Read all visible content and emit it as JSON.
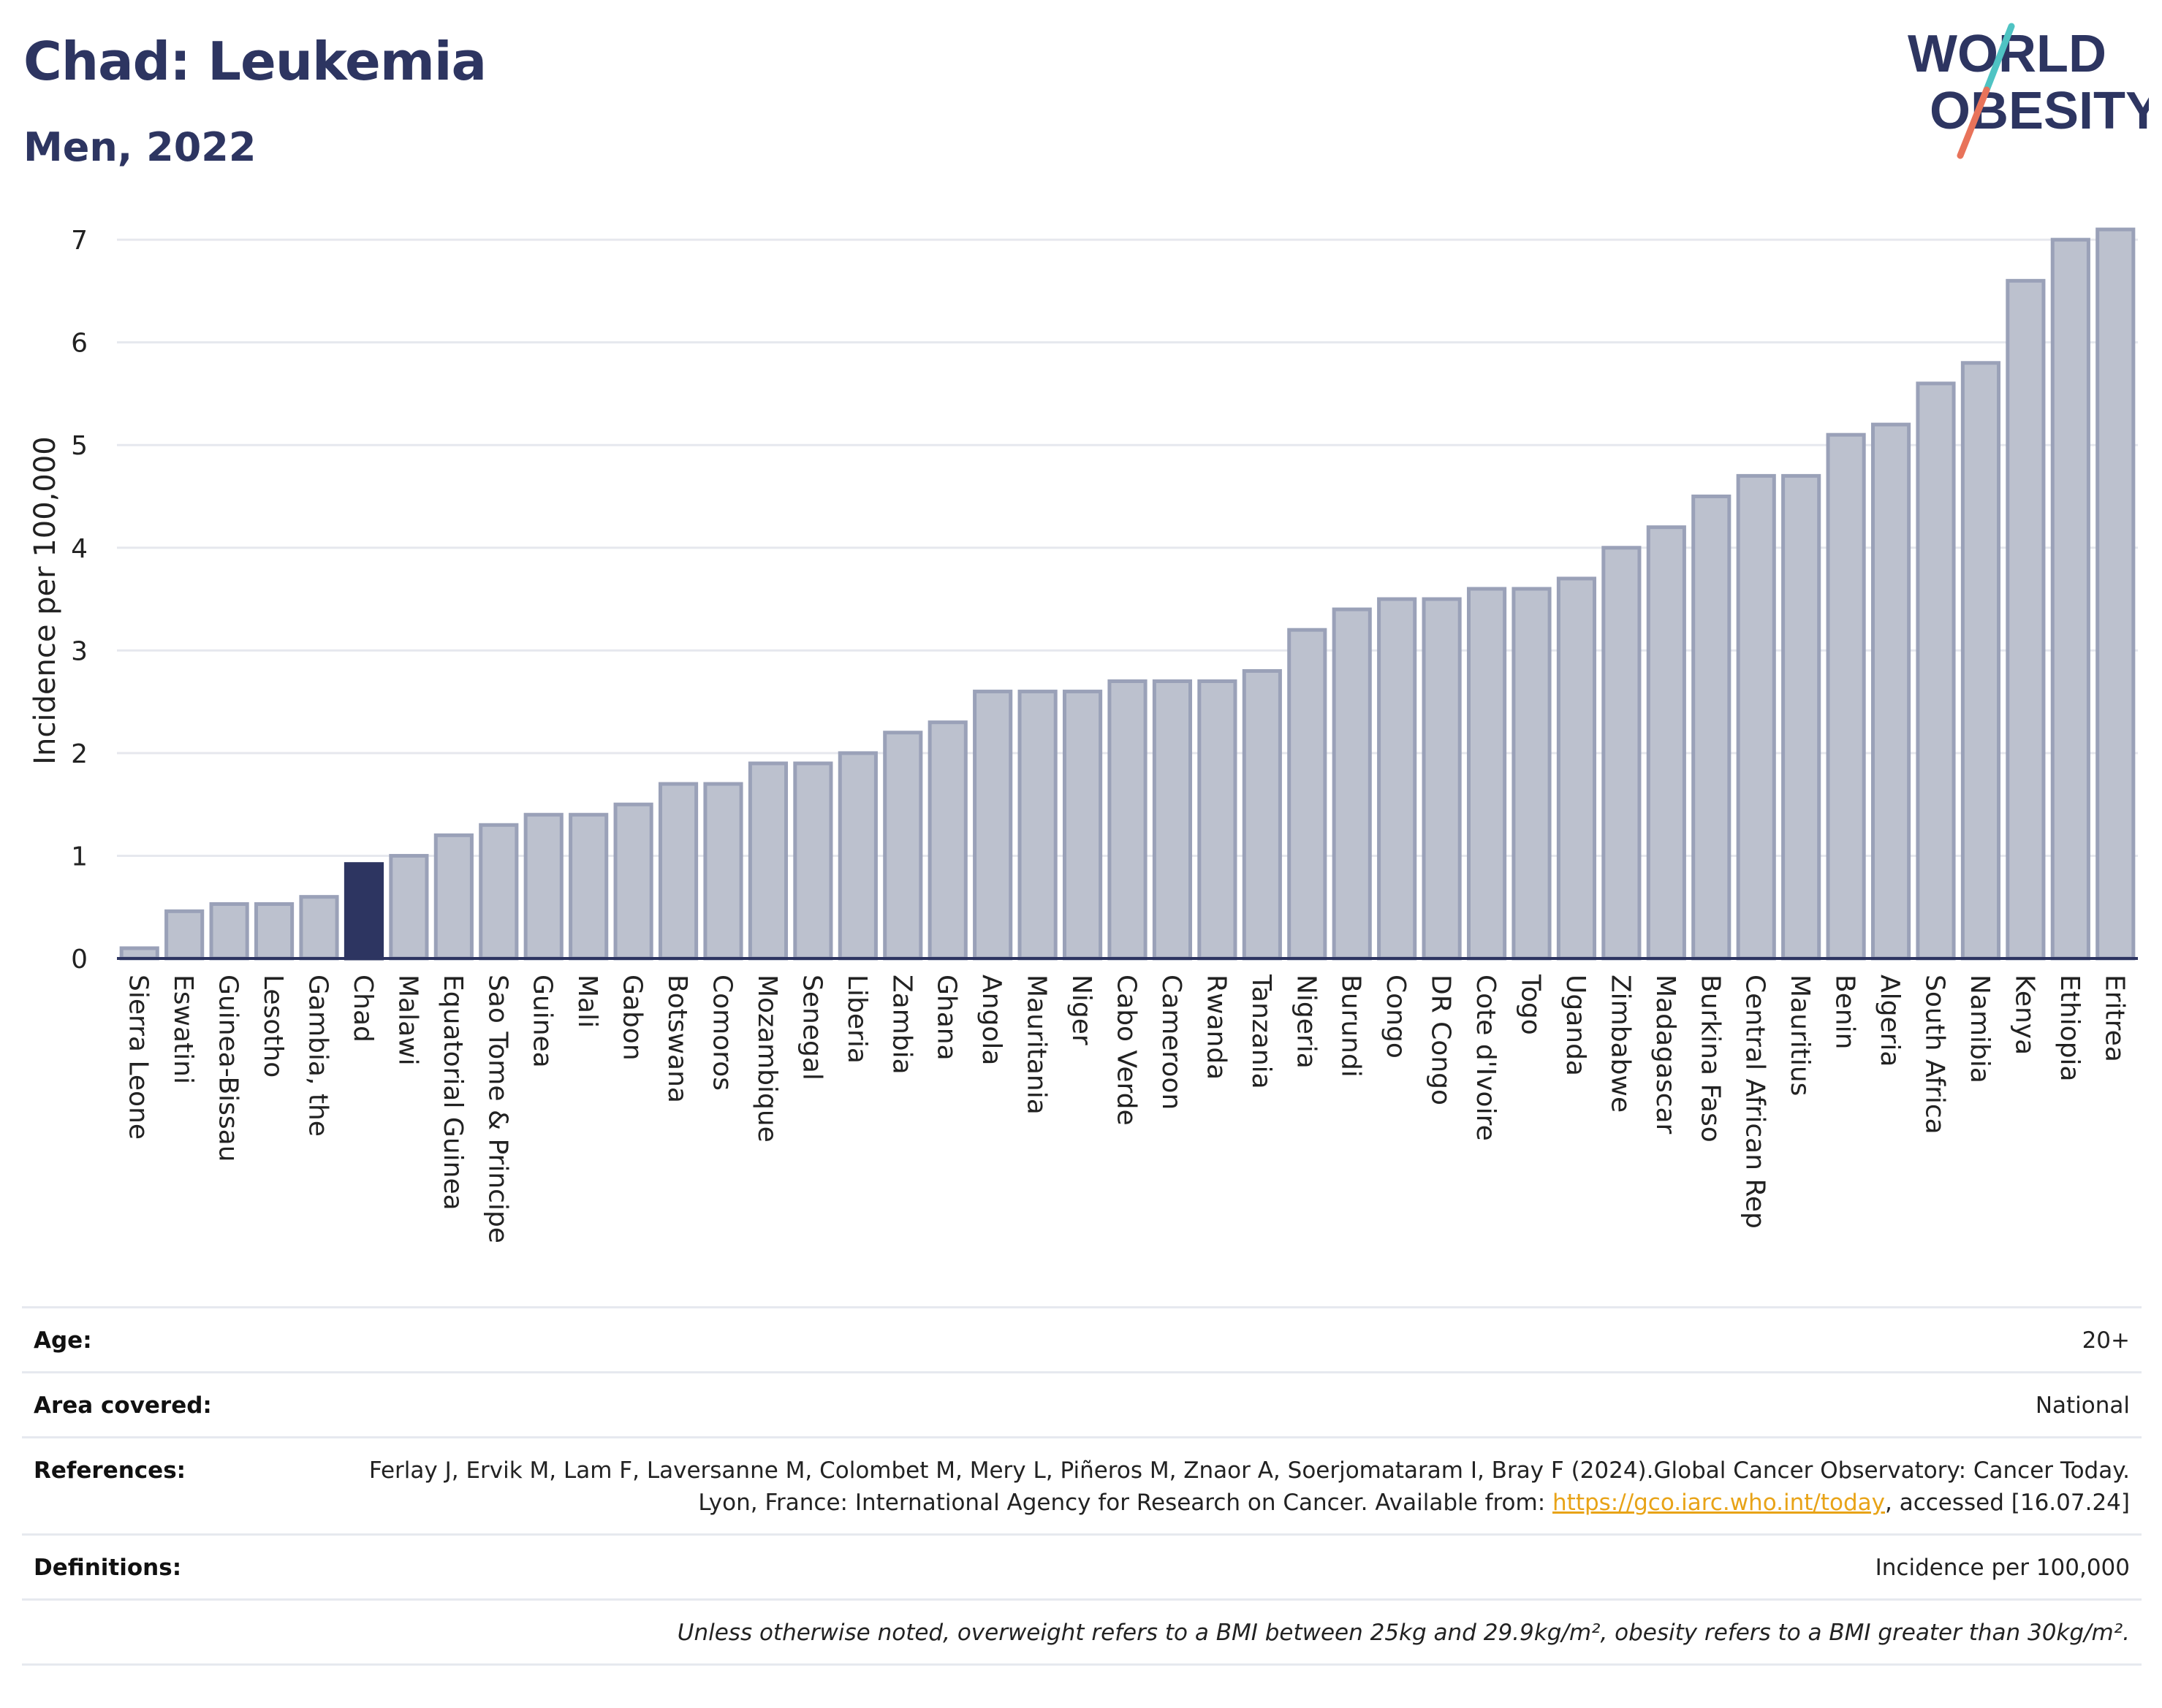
{
  "title": "Chad: Leukemia",
  "subtitle": "Men, 2022",
  "logo": {
    "line1": "WORLD",
    "line2": "OBESITY",
    "brand_color": "#2d3561",
    "slash_colors": [
      "#4fc3c3",
      "#e8735a"
    ]
  },
  "colors": {
    "bar": "#bcc1ce",
    "bar_stroke": "#9aa1b8",
    "highlight": "#2d3561",
    "grid": "#e6e8ee",
    "axis": "#2d3561"
  },
  "chart_data": {
    "type": "bar",
    "ylabel": "Incidence per 100,000",
    "ylim": [
      0,
      7.2
    ],
    "yticks": [
      0,
      1,
      2,
      3,
      4,
      5,
      6,
      7
    ],
    "grid": true,
    "highlight": "Chad",
    "categories": [
      "Sierra Leone",
      "Eswatini",
      "Guinea-Bissau",
      "Lesotho",
      "Gambia, the",
      "Chad",
      "Malawi",
      "Equatorial Guinea",
      "Sao Tome & Principe",
      "Guinea",
      "Mali",
      "Gabon",
      "Botswana",
      "Comoros",
      "Mozambique",
      "Senegal",
      "Liberia",
      "Zambia",
      "Ghana",
      "Angola",
      "Mauritania",
      "Niger",
      "Cabo Verde",
      "Cameroon",
      "Rwanda",
      "Tanzania",
      "Nigeria",
      "Burundi",
      "Congo",
      "DR Congo",
      "Cote d'Ivoire",
      "Togo",
      "Uganda",
      "Zimbabwe",
      "Madagascar",
      "Burkina Faso",
      "Central African Rep",
      "Mauritius",
      "Benin",
      "Algeria",
      "South Africa",
      "Namibia",
      "Kenya",
      "Ethiopia",
      "Eritrea"
    ],
    "values": [
      0.1,
      0.46,
      0.53,
      0.53,
      0.6,
      0.92,
      1.0,
      1.2,
      1.3,
      1.4,
      1.4,
      1.5,
      1.7,
      1.7,
      1.9,
      1.9,
      2.0,
      2.2,
      2.3,
      2.6,
      2.6,
      2.6,
      2.7,
      2.7,
      2.7,
      2.8,
      3.2,
      3.4,
      3.5,
      3.5,
      3.6,
      3.6,
      3.7,
      4.0,
      4.2,
      4.5,
      4.7,
      4.7,
      5.1,
      5.2,
      5.6,
      5.8,
      6.6,
      7.0,
      7.1
    ]
  },
  "info": {
    "age_label": "Age:",
    "age_value": "20+",
    "area_label": "Area covered:",
    "area_value": "National",
    "references_label": "References:",
    "references_text": "Ferlay J, Ervik M, Lam F, Laversanne M, Colombet M, Mery L, Piñeros M, Znaor A, Soerjomataram I, Bray F (2024).Global Cancer Observatory: Cancer Today. Lyon, France: International Agency for Research on Cancer. Available from: ",
    "references_link": "https://gco.iarc.who.int/today",
    "references_suffix": ", accessed [16.07.24]",
    "definitions_label": "Definitions:",
    "definitions_value": "Incidence per 100,000",
    "note": "Unless otherwise noted, overweight refers to a BMI between 25kg and 29.9kg/m², obesity refers to a BMI greater than 30kg/m²."
  }
}
